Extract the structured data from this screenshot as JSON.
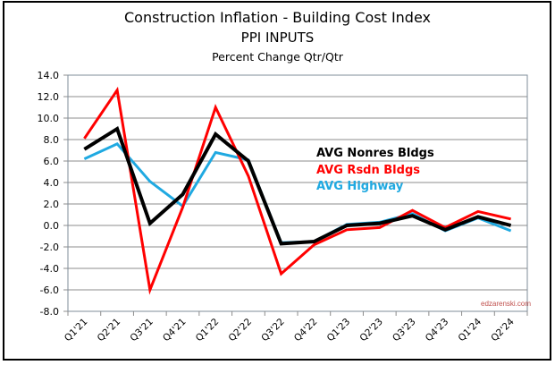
{
  "chart_data": {
    "type": "line",
    "title": "Construction Inflation - Building Cost Index",
    "subtitle": "PPI INPUTS",
    "subtitle2": "Percent Change Qtr/Qtr",
    "xlabel": "",
    "ylabel": "",
    "ylim": [
      -8,
      14
    ],
    "ytick_step": 2,
    "ytick_labels": [
      "14.0",
      "12.0",
      "10.0",
      "8.0",
      "6.0",
      "4.0",
      "2.0",
      "0.0",
      "-2.0",
      "-4.0",
      "-6.0",
      "-8.0"
    ],
    "grid": true,
    "categories": [
      "Q1'21",
      "Q2'21",
      "Q3'21",
      "Q4'21",
      "Q1'22",
      "Q2'22",
      "Q3'22",
      "Q4'22",
      "Q1'23",
      "Q2'23",
      "Q3'23",
      "Q4'23",
      "Q1'24",
      "Q2'24"
    ],
    "series": [
      {
        "name": "AVG Nonres Bldgs",
        "color": "#000000",
        "values": [
          7.1,
          9.0,
          0.2,
          2.9,
          8.5,
          6.0,
          -1.7,
          -1.5,
          0.0,
          0.2,
          0.9,
          -0.4,
          0.8,
          0.0
        ]
      },
      {
        "name": "AVG Rsdn Bldgs",
        "color": "#ff0000",
        "values": [
          8.1,
          12.6,
          -6.0,
          1.7,
          11.0,
          4.6,
          -4.5,
          -1.8,
          -0.4,
          -0.2,
          1.4,
          -0.2,
          1.3,
          0.6
        ]
      },
      {
        "name": "AVG Highway",
        "color": "#1fa9e1",
        "values": [
          6.2,
          7.6,
          4.1,
          1.8,
          6.8,
          6.1,
          -1.6,
          -1.5,
          0.1,
          0.3,
          1.1,
          -0.5,
          0.7,
          -0.5
        ]
      }
    ],
    "legend_placement": "center-right",
    "watermark": "edzarenski.com"
  }
}
